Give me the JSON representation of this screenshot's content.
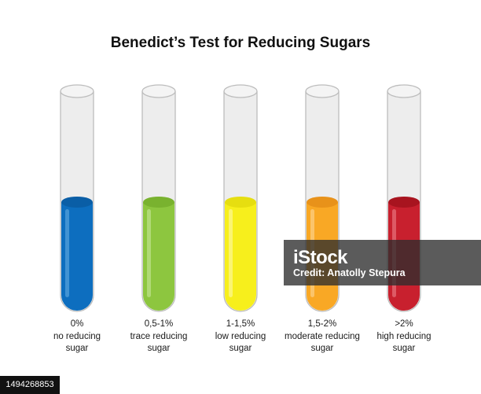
{
  "title": "Benedict’s Test for Reducing Sugars",
  "tubes": [
    {
      "color": "#0d6ebf",
      "highlight": "#4b9ad6",
      "top_color": "#0a5ea6",
      "caption": [
        "0%",
        "no reducing",
        "sugar"
      ]
    },
    {
      "color": "#8dc63f",
      "highlight": "#b6dd80",
      "top_color": "#79b22f",
      "caption": [
        "0,5-1%",
        "trace reducing",
        "sugar"
      ]
    },
    {
      "color": "#f7ef1c",
      "highlight": "#fbf681",
      "top_color": "#e6de10",
      "caption": [
        "1-1,5%",
        "low reducing",
        "sugar"
      ]
    },
    {
      "color": "#f9a825",
      "highlight": "#fcc978",
      "top_color": "#e8921a",
      "caption": [
        "1,5-2%",
        "moderate reducing",
        "sugar"
      ]
    },
    {
      "color": "#c8202e",
      "highlight": "#e0656f",
      "top_color": "#a8141f",
      "caption": [
        ">2%",
        "high reducing",
        "sugar"
      ]
    }
  ],
  "watermark": {
    "mark": "iStock",
    "credit": "Credit: Anatolly Stepura"
  },
  "stock_id": "1494268853"
}
